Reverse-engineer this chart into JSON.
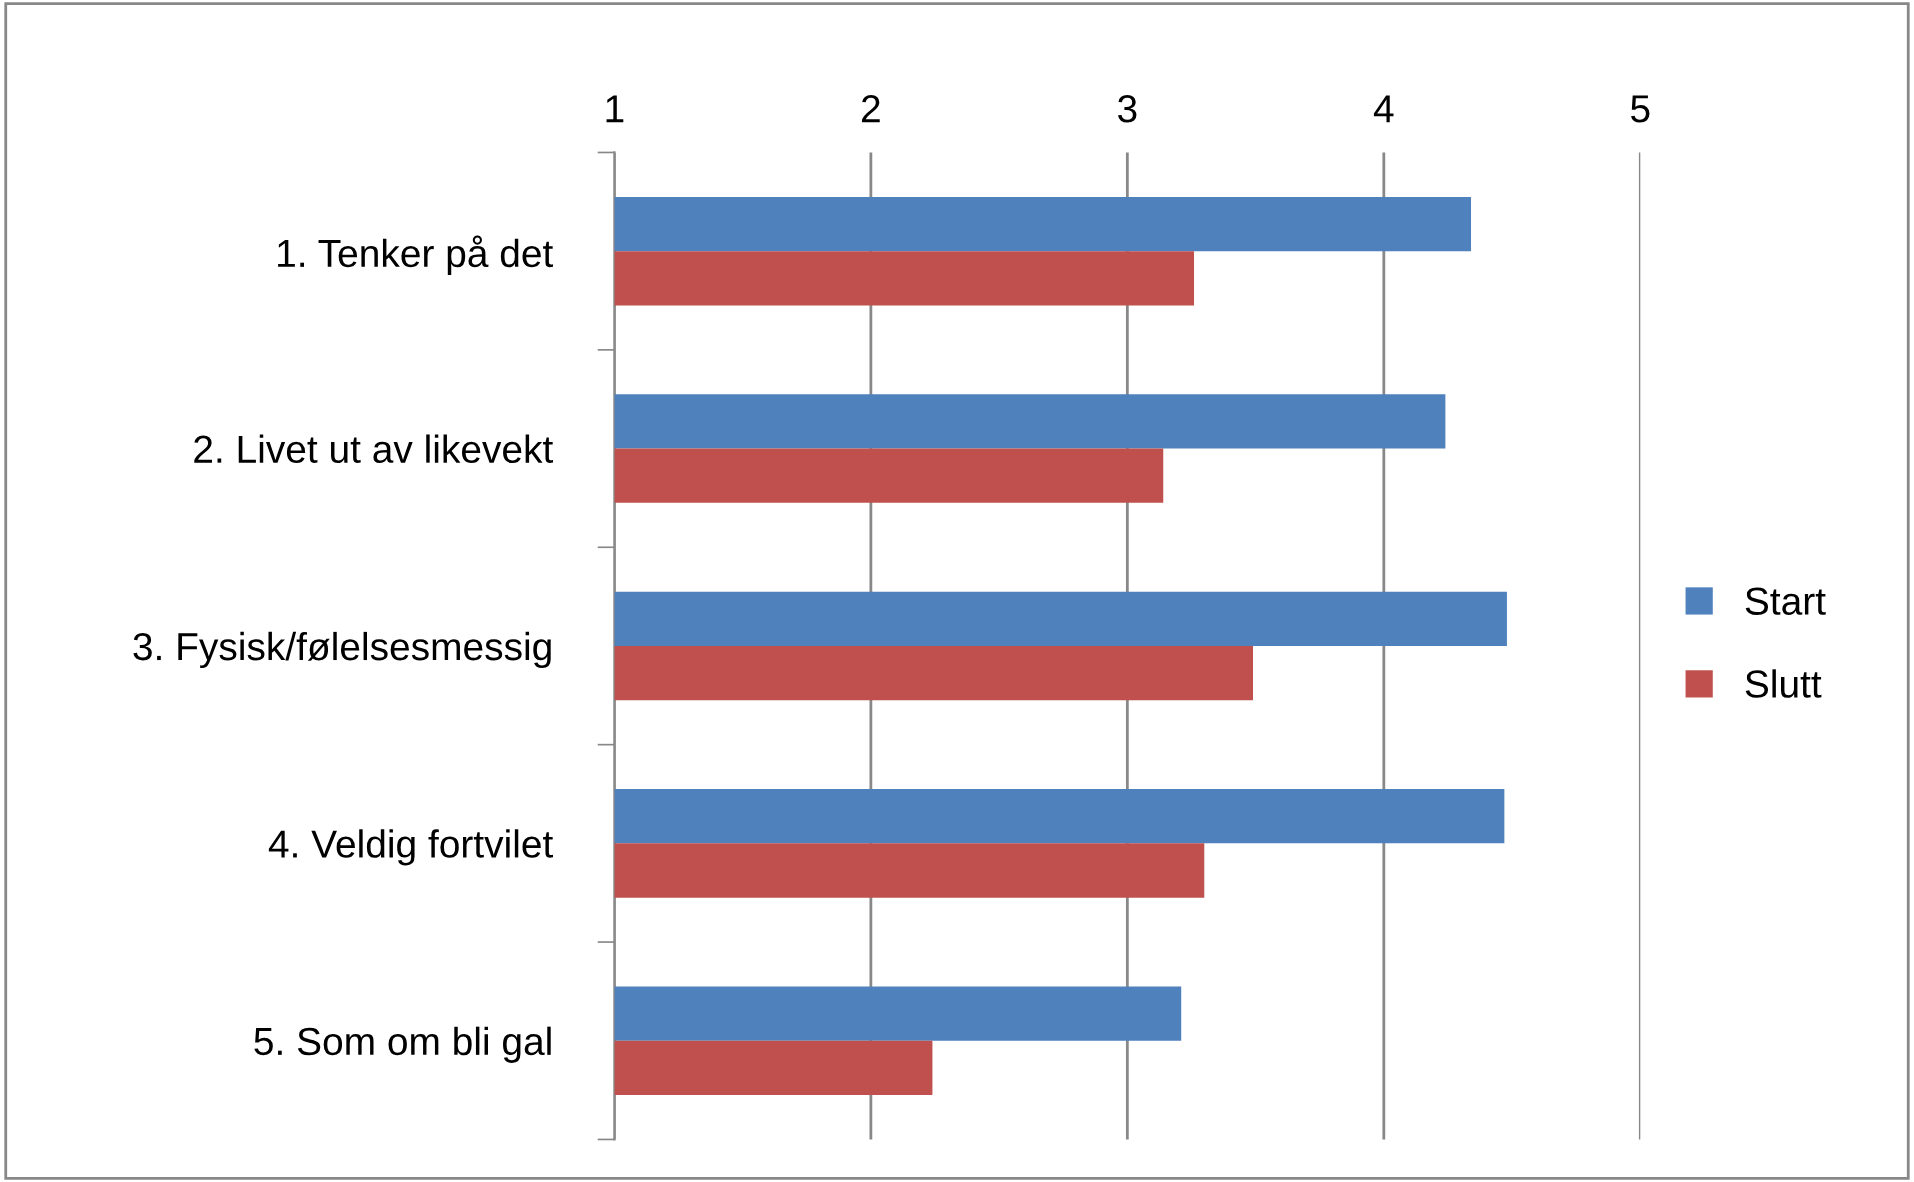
{
  "chart_data": {
    "type": "bar",
    "orientation": "horizontal",
    "categories": [
      "1. Tenker på det",
      "2. Livet ut av likevekt",
      "3. Fysisk/følelsesmessig",
      "4. Veldig fortvilet",
      "5. Som om bli gal"
    ],
    "series": [
      {
        "name": "Start",
        "color": "#4f81bd",
        "values": [
          4.34,
          4.24,
          4.48,
          4.47,
          3.21
        ]
      },
      {
        "name": "Slutt",
        "color": "#c0504d",
        "values": [
          3.26,
          3.14,
          3.49,
          3.3,
          2.24
        ]
      }
    ],
    "xlim": [
      1,
      5
    ],
    "xticks": [
      1,
      2,
      3,
      4,
      5
    ],
    "grid": "x",
    "legend": "right"
  }
}
